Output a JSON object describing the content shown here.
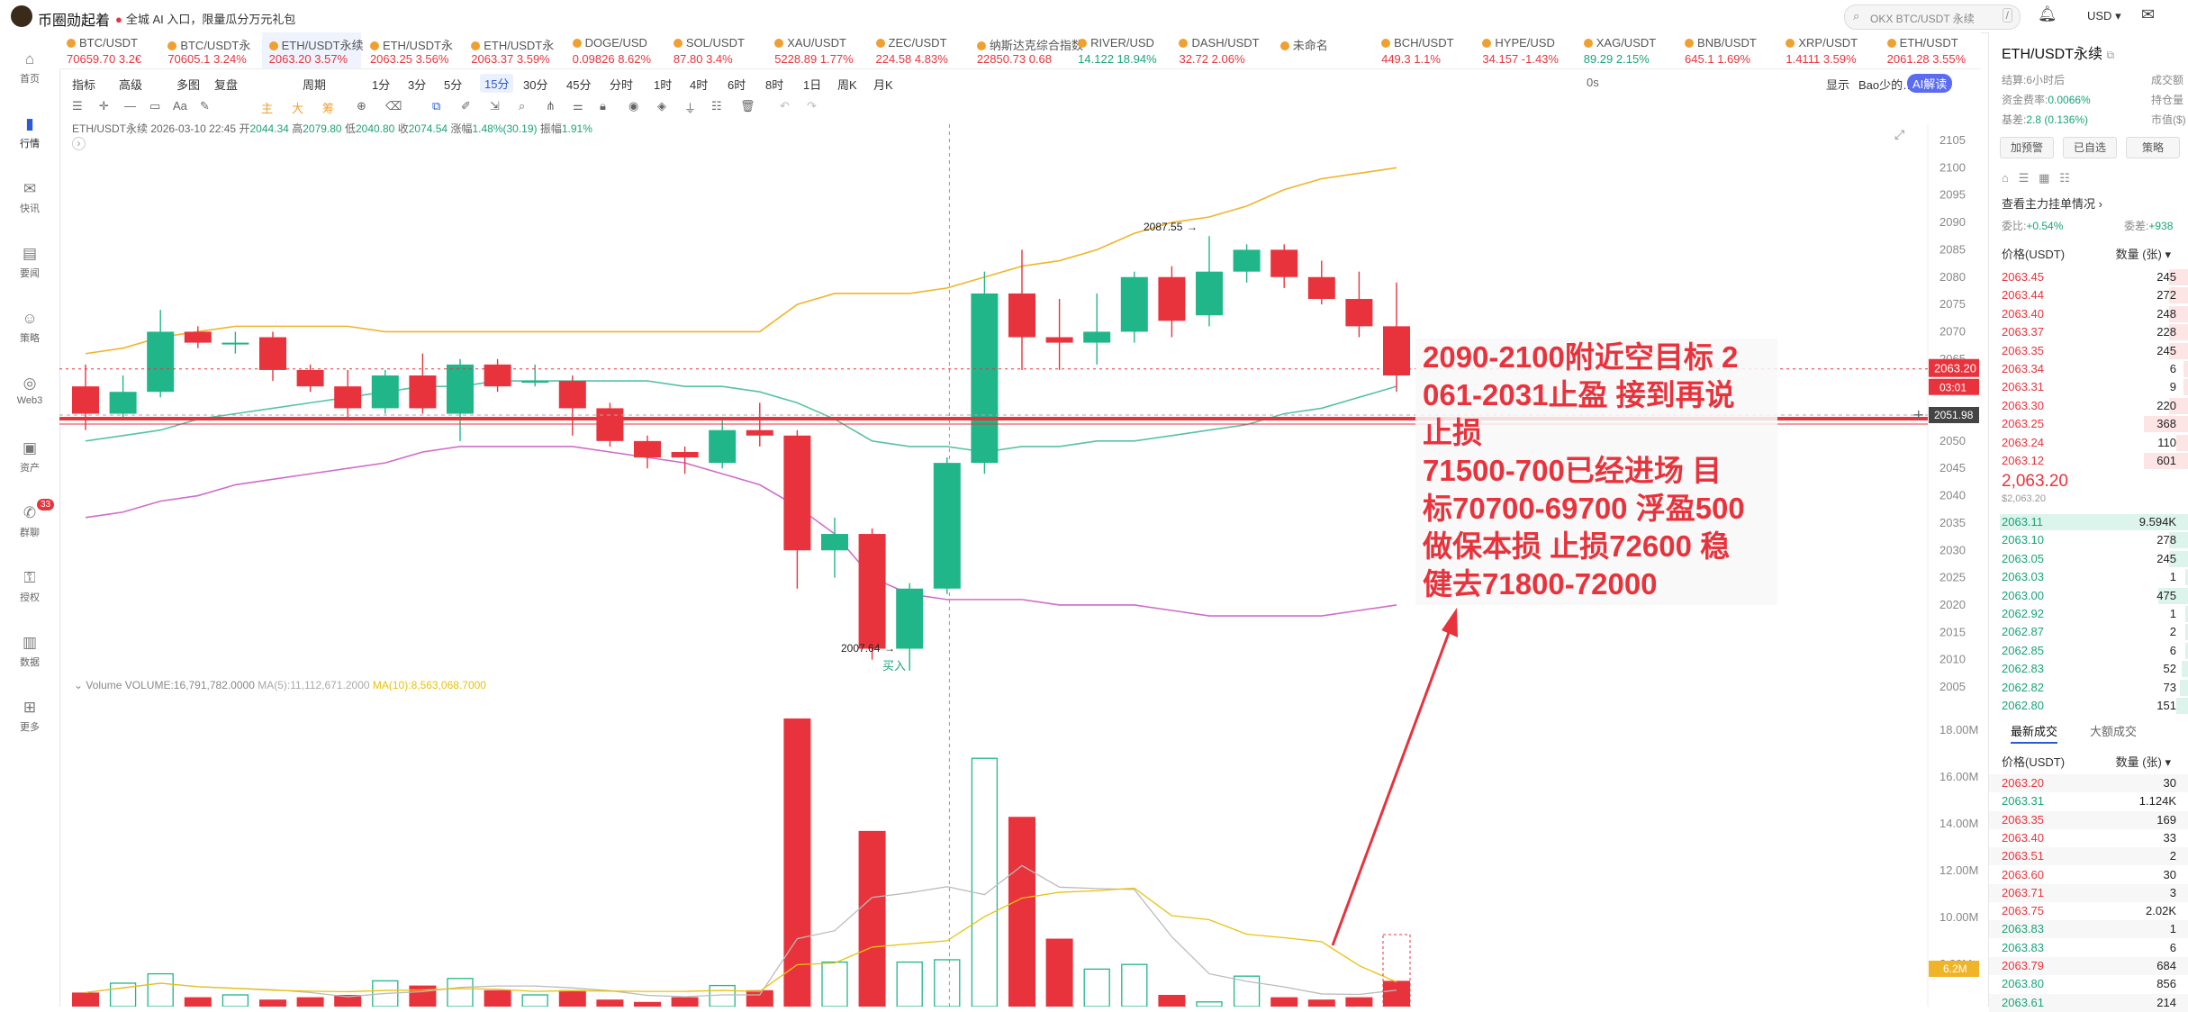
{
  "app": {
    "name": "币圈勋起着",
    "promo": "全城 AI 入口，限量瓜分万元礼包"
  },
  "header": {
    "search_placeholder": "OKX BTC/USDT 永续",
    "search_key": "/",
    "currency": "USD"
  },
  "sidebar": [
    {
      "label": "首页",
      "icon": "home-icon"
    },
    {
      "label": "行情",
      "icon": "chart-bars-icon",
      "active": true
    },
    {
      "label": "快讯",
      "icon": "news-icon"
    },
    {
      "label": "要闻",
      "icon": "document-icon"
    },
    {
      "label": "策略",
      "icon": "robot-icon"
    },
    {
      "label": "Web3",
      "icon": "web3-icon"
    },
    {
      "label": "资产",
      "icon": "wallet-icon"
    },
    {
      "label": "群聊",
      "icon": "chat-icon",
      "badge": "33"
    },
    {
      "label": "授权",
      "icon": "key-icon"
    },
    {
      "label": "数据",
      "icon": "data-icon"
    },
    {
      "label": "更多",
      "icon": "grid-icon"
    }
  ],
  "tickers": [
    {
      "name": "BTC/USDT",
      "price": "70659.70",
      "change": "3.2€",
      "dir": "up"
    },
    {
      "name": "BTC/USDT永",
      "price": "70605.1",
      "change": "3.24%",
      "dir": "up"
    },
    {
      "name": "ETH/USDT永续",
      "price": "2063.20",
      "change": "3.57%",
      "dir": "up",
      "active": true
    },
    {
      "name": "ETH/USDT永",
      "price": "2063.25",
      "change": "3.56%",
      "dir": "up"
    },
    {
      "name": "ETH/USDT永",
      "price": "2063.37",
      "change": "3.59%",
      "dir": "up"
    },
    {
      "name": "DOGE/USD",
      "price": "0.09826",
      "change": "8.62%",
      "dir": "up"
    },
    {
      "name": "SOL/USDT",
      "price": "87.80",
      "change": "3.4%",
      "dir": "up"
    },
    {
      "name": "XAU/USDT",
      "price": "5228.89",
      "change": "1.77%",
      "dir": "up"
    },
    {
      "name": "ZEC/USDT",
      "price": "224.58",
      "change": "4.83%",
      "dir": "up"
    },
    {
      "name": "纳斯达克综合指数",
      "price": "22850.73",
      "change": "0.68",
      "dir": "up"
    },
    {
      "name": "RIVER/USD",
      "price": "14.122",
      "change": "18.94%",
      "dir": "dn"
    },
    {
      "name": "DASH/USDT",
      "price": "32.72",
      "change": "2.06%",
      "dir": "up"
    },
    {
      "name": "未命名",
      "price": "",
      "change": "",
      "dir": "up"
    },
    {
      "name": "BCH/USDT",
      "price": "449.3",
      "change": "1.1%",
      "dir": "up"
    },
    {
      "name": "HYPE/USD",
      "price": "34.157",
      "change": "-1.43%",
      "dir": "up"
    },
    {
      "name": "XAG/USDT",
      "price": "89.29",
      "change": "2.15%",
      "dir": "dn"
    },
    {
      "name": "BNB/USDT",
      "price": "645.1",
      "change": "1.69%",
      "dir": "up"
    },
    {
      "name": "XRP/USDT",
      "price": "1.4111",
      "change": "3.59%",
      "dir": "up"
    },
    {
      "name": "ETH/USDT",
      "price": "2061.28",
      "change": "3.55%",
      "dir": "up"
    }
  ],
  "toolbar": {
    "row1": [
      "指标",
      "高级",
      "多图",
      "复盘",
      "周期",
      "1分",
      "3分",
      "5分",
      "15分",
      "30分",
      "45分",
      "分时",
      "1时",
      "4时",
      "6时",
      "8时",
      "1日",
      "周K",
      "月K"
    ],
    "selected": "15分",
    "right": [
      "0s",
      "显示",
      "Bao少的…",
      "AI解读"
    ],
    "row2_labels": [
      "主",
      "大",
      "筹"
    ]
  },
  "ohlc": {
    "symbol": "ETH/USDT永续",
    "time": "2026-03-10 22:45",
    "open_label": "开",
    "open": "2044.34",
    "high_label": "高",
    "high": "2079.80",
    "low_label": "低",
    "low": "2040.80",
    "close_label": "收",
    "close": "2074.54",
    "chg_label": "涨幅",
    "chg": "1.48%(30.19)",
    "amp_label": "振幅",
    "amp": "1.91%"
  },
  "volume_legend": {
    "title": "Volume",
    "volume": "VOLUME:16,791,782.0000",
    "ma5": "MA(5):11,112,671.2000",
    "ma10": "MA(10):8,563,068.7000"
  },
  "chart_data": {
    "type": "candlestick",
    "price_axis": {
      "min": 2005,
      "max": 2105,
      "ticks": [
        2105,
        2100,
        2095,
        2090,
        2085,
        2080,
        2075,
        2070,
        2065,
        2060,
        2055,
        2050,
        2045,
        2040,
        2035,
        2030,
        2025,
        2020,
        2015,
        2010,
        2005
      ]
    },
    "candles": [
      {
        "o": 2060.0,
        "h": 2064.0,
        "l": 2052.0,
        "c": 2055.0
      },
      {
        "o": 2055.0,
        "h": 2062.0,
        "l": 2054.0,
        "c": 2059.0
      },
      {
        "o": 2059.0,
        "h": 2074.0,
        "l": 2058.0,
        "c": 2070.0
      },
      {
        "o": 2070.0,
        "h": 2071.0,
        "l": 2067.0,
        "c": 2068.0
      },
      {
        "o": 2068.0,
        "h": 2070.0,
        "l": 2066.0,
        "c": 2068.0
      },
      {
        "o": 2069.0,
        "h": 2070.0,
        "l": 2061.0,
        "c": 2063.0
      },
      {
        "o": 2063.0,
        "h": 2064.0,
        "l": 2059.0,
        "c": 2060.0
      },
      {
        "o": 2060.0,
        "h": 2063.0,
        "l": 2054.0,
        "c": 2056.0
      },
      {
        "o": 2056.0,
        "h": 2063.0,
        "l": 2055.0,
        "c": 2062.0
      },
      {
        "o": 2062.0,
        "h": 2066.0,
        "l": 2055.0,
        "c": 2056.0
      },
      {
        "o": 2055.0,
        "h": 2065.0,
        "l": 2050.0,
        "c": 2064.0
      },
      {
        "o": 2064.0,
        "h": 2065.0,
        "l": 2059.0,
        "c": 2060.0
      },
      {
        "o": 2061.0,
        "h": 2064.0,
        "l": 2060.0,
        "c": 2061.0
      },
      {
        "o": 2061.0,
        "h": 2062.0,
        "l": 2051.0,
        "c": 2056.0
      },
      {
        "o": 2056.0,
        "h": 2057.0,
        "l": 2049.0,
        "c": 2050.0
      },
      {
        "o": 2050.0,
        "h": 2051.0,
        "l": 2045.0,
        "c": 2047.0
      },
      {
        "o": 2048.0,
        "h": 2049.0,
        "l": 2044.0,
        "c": 2047.0
      },
      {
        "o": 2046.0,
        "h": 2054.0,
        "l": 2045.0,
        "c": 2052.0
      },
      {
        "o": 2052.0,
        "h": 2057.0,
        "l": 2049.0,
        "c": 2051.0
      },
      {
        "o": 2051.0,
        "h": 2052.0,
        "l": 2023.0,
        "c": 2030.0
      },
      {
        "o": 2030.0,
        "h": 2036.0,
        "l": 2025.0,
        "c": 2033.0
      },
      {
        "o": 2033.0,
        "h": 2034.0,
        "l": 2010.0,
        "c": 2012.0
      },
      {
        "o": 2012.0,
        "h": 2024.0,
        "l": 2008.0,
        "c": 2023.0
      },
      {
        "o": 2023.0,
        "h": 2047.0,
        "l": 2022.0,
        "c": 2046.0
      },
      {
        "o": 2046.0,
        "h": 2081.0,
        "l": 2044.0,
        "c": 2077.0
      },
      {
        "o": 2077.0,
        "h": 2085.0,
        "l": 2063.0,
        "c": 2069.0
      },
      {
        "o": 2069.0,
        "h": 2076.0,
        "l": 2063.0,
        "c": 2068.0
      },
      {
        "o": 2068.0,
        "h": 2077.0,
        "l": 2064.0,
        "c": 2070.0
      },
      {
        "o": 2070.0,
        "h": 2081.0,
        "l": 2068.0,
        "c": 2080.0
      },
      {
        "o": 2080.0,
        "h": 2082.0,
        "l": 2069.0,
        "c": 2072.0
      },
      {
        "o": 2073.0,
        "h": 2087.5,
        "l": 2071.0,
        "c": 2081.0
      },
      {
        "o": 2081.0,
        "h": 2086.0,
        "l": 2079.0,
        "c": 2085.0
      },
      {
        "o": 2085.0,
        "h": 2086.0,
        "l": 2078.0,
        "c": 2080.0
      },
      {
        "o": 2080.0,
        "h": 2083.0,
        "l": 2075.0,
        "c": 2076.0
      },
      {
        "o": 2076.0,
        "h": 2081.0,
        "l": 2069.0,
        "c": 2071.0
      },
      {
        "o": 2071.0,
        "h": 2079.0,
        "l": 2059.0,
        "c": 2062.0
      }
    ],
    "volume": [
      6.8,
      7.2,
      7.6,
      6.6,
      6.7,
      6.5,
      6.6,
      6.7,
      7.3,
      7.1,
      7.4,
      6.9,
      6.7,
      6.9,
      6.5,
      6.4,
      6.6,
      7.1,
      6.9,
      18.5,
      8.1,
      13.7,
      8.1,
      8.2,
      16.8,
      14.3,
      9.1,
      7.8,
      8.0,
      6.7,
      6.4,
      7.5,
      6.6,
      6.5,
      6.6,
      7.3
    ],
    "volume_axis": {
      "ticks": [
        "18.00M",
        "16.00M",
        "14.00M",
        "12.00M",
        "10.00M",
        "8.00M"
      ]
    },
    "ma_values": {
      "yellow": [
        2066,
        2067,
        2069,
        2070,
        2071,
        2071,
        2071,
        2071,
        2070,
        2070,
        2070,
        2070,
        2070,
        2070,
        2070,
        2070,
        2070,
        2070,
        2070,
        2075,
        2077,
        2077,
        2077,
        2078,
        2080,
        2082,
        2083,
        2085,
        2088,
        2090,
        2091,
        2093,
        2096,
        2098,
        2099,
        2100
      ],
      "green": [
        2050,
        2051,
        2052,
        2054,
        2055,
        2056,
        2057,
        2058,
        2059,
        2060,
        2060,
        2061,
        2061,
        2061,
        2061,
        2061,
        2060,
        2060,
        2059,
        2057,
        2054,
        2050,
        2049,
        2049,
        2048,
        2049,
        2049,
        2050,
        2050,
        2051,
        2052,
        2053,
        2055,
        2056,
        2058,
        2060
      ],
      "purple": [
        2036,
        2037,
        2039,
        2040,
        2042,
        2043,
        2044,
        2045,
        2046,
        2048,
        2049,
        2049,
        2049,
        2049,
        2048,
        2047,
        2046,
        2044,
        2042,
        2038,
        2033,
        2025,
        2022,
        2021,
        2021,
        2021,
        2020,
        2020,
        2020,
        2019,
        2018,
        2018,
        2018,
        2018,
        2019,
        2020
      ]
    },
    "current_price": "2063.20",
    "countdown": "03:01",
    "crosshair_price": "2051.98",
    "high_marker": "2087.55",
    "low_marker": "2007.64",
    "buy_label": "买入",
    "volume_badge": "6.2M"
  },
  "annotation": [
    "2090-2100附近空目标 2",
    "061-2031止盈 接到再说",
    "止损",
    "71500-700已经进场 目",
    "标70700-69700 浮盈500",
    "做保本损 止损72600 稳",
    "健去71800-72000"
  ],
  "right_panel": {
    "title": "ETH/USDT永续",
    "settle_label": "结算:",
    "settle": "6小时后",
    "funding_label": "资金费率:",
    "funding": "0.0066%",
    "basis_label": "基差:",
    "basis": "2.8 (0.136%)",
    "side_labels": [
      "成交额",
      "持仓量",
      "市值($)"
    ],
    "buttons": [
      "加预警",
      "已自选",
      "策略"
    ],
    "flow_link": "查看主力挂单情况",
    "ratio_label": "委比:",
    "ratio": "+0.54%",
    "diff_label": "委差:",
    "diff": "+938",
    "price_header": "价格(USDT)",
    "qty_header": "数量 (张)",
    "asks": [
      {
        "p": "2063.45",
        "q": "245"
      },
      {
        "p": "2063.44",
        "q": "272"
      },
      {
        "p": "2063.40",
        "q": "248"
      },
      {
        "p": "2063.37",
        "q": "228"
      },
      {
        "p": "2063.35",
        "q": "245"
      },
      {
        "p": "2063.34",
        "q": "6"
      },
      {
        "p": "2063.31",
        "q": "9"
      },
      {
        "p": "2063.30",
        "q": "220"
      },
      {
        "p": "2063.25",
        "q": "368"
      },
      {
        "p": "2063.24",
        "q": "110"
      },
      {
        "p": "2063.12",
        "q": "601"
      }
    ],
    "last_price": "2,063.20",
    "last_price_usd": "$2,063.20",
    "bids": [
      {
        "p": "2063.11",
        "q": "9.594K"
      },
      {
        "p": "2063.10",
        "q": "278"
      },
      {
        "p": "2063.05",
        "q": "245"
      },
      {
        "p": "2063.03",
        "q": "1"
      },
      {
        "p": "2063.00",
        "q": "475"
      },
      {
        "p": "2062.92",
        "q": "1"
      },
      {
        "p": "2062.87",
        "q": "2"
      },
      {
        "p": "2062.85",
        "q": "6"
      },
      {
        "p": "2062.83",
        "q": "52"
      },
      {
        "p": "2062.82",
        "q": "73"
      },
      {
        "p": "2062.80",
        "q": "151"
      }
    ],
    "trade_tabs": [
      "最新成交",
      "大额成交"
    ],
    "trades": [
      {
        "p": "2063.20",
        "q": "30",
        "d": "up"
      },
      {
        "p": "2063.31",
        "q": "1.124K",
        "d": "dn"
      },
      {
        "p": "2063.35",
        "q": "169",
        "d": "up"
      },
      {
        "p": "2063.40",
        "q": "33",
        "d": "up"
      },
      {
        "p": "2063.51",
        "q": "2",
        "d": "up"
      },
      {
        "p": "2063.60",
        "q": "30",
        "d": "up"
      },
      {
        "p": "2063.71",
        "q": "3",
        "d": "up"
      },
      {
        "p": "2063.75",
        "q": "2.02K",
        "d": "up"
      },
      {
        "p": "2063.83",
        "q": "1",
        "d": "dn"
      },
      {
        "p": "2063.83",
        "q": "6",
        "d": "dn"
      },
      {
        "p": "2063.79",
        "q": "684",
        "d": "up"
      },
      {
        "p": "2063.80",
        "q": "856",
        "d": "dn"
      },
      {
        "p": "2063.61",
        "q": "214",
        "d": "dn"
      }
    ]
  },
  "colors": {
    "up": "#e8333c",
    "down": "#20b68a",
    "accent": "#2a5bd7",
    "ma_yellow": "#f0b429",
    "ma_green": "#56c2a6",
    "ma_purple": "#d06cc8"
  }
}
